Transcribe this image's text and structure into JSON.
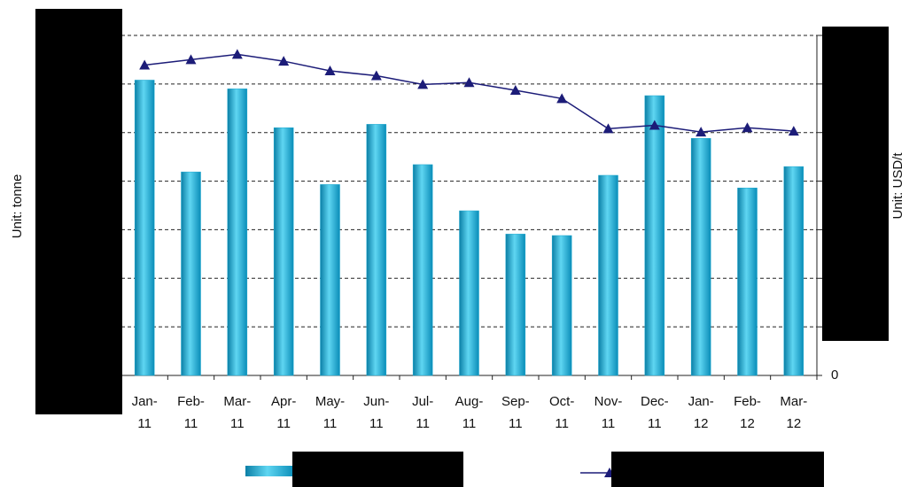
{
  "chart_data": {
    "type": "bar_line",
    "y_label": "Unit: tonne",
    "y2_label": "Unit: USD/t",
    "categories": [
      "Jan-11",
      "Feb-11",
      "Mar-11",
      "Apr-11",
      "May-11",
      "Jun-11",
      "Jul-11",
      "Aug-11",
      "Sep-11",
      "Oct-11",
      "Nov-11",
      "Dec-11",
      "Jan-12",
      "Feb-12",
      "Mar-12"
    ],
    "series": [
      {
        "type": "bar",
        "color": "#1aa7cf",
        "values": [
          6.08,
          4.19,
          5.9,
          5.1,
          3.93,
          5.17,
          4.34,
          3.39,
          2.91,
          2.88,
          4.12,
          5.76,
          4.88,
          3.86,
          4.3
        ]
      },
      {
        "type": "line",
        "color": "#1c1c78",
        "axis": "y2",
        "values": [
          6.39,
          6.5,
          6.61,
          6.47,
          6.27,
          6.17,
          5.99,
          6.03,
          5.87,
          5.7,
          5.08,
          5.15,
          5.01,
          5.1,
          5.03
        ]
      }
    ],
    "ylim": [
      0,
      7
    ],
    "gridlines": [
      1,
      2,
      3,
      4,
      5,
      6,
      7
    ],
    "grid": true,
    "y2lim": [
      0,
      7
    ],
    "y2ticks": [
      0
    ]
  }
}
